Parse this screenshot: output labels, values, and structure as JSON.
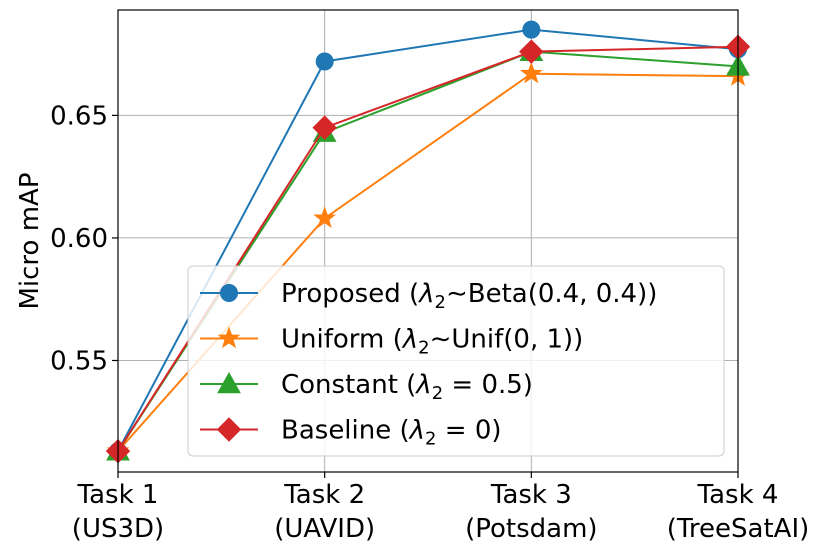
{
  "chart_data": {
    "type": "line",
    "title": "",
    "xlabel": "",
    "ylabel": "Micro mAP",
    "categories": [
      [
        "Task 1",
        "(US3D)"
      ],
      [
        "Task 2",
        "(UAVID)"
      ],
      [
        "Task 3",
        "(Potsdam)"
      ],
      [
        "Task 4",
        "(TreeSatAI)"
      ]
    ],
    "ylim": [
      0.5045,
      0.693
    ],
    "yticks": [
      0.55,
      0.6,
      0.65
    ],
    "ytick_labels": [
      "0.55",
      "0.60",
      "0.65"
    ],
    "grid": true,
    "legend_position": "lower-right",
    "series": [
      {
        "name": "Proposed",
        "legend_prefix": "Proposed (",
        "lambda": "λ",
        "lambda_sub": "2",
        "legend_suffix": "∼Beta(0.4, 0.4))",
        "color": "#1f77b4",
        "marker": "circle",
        "values": [
          0.513,
          0.672,
          0.685,
          0.677
        ]
      },
      {
        "name": "Uniform",
        "legend_prefix": "Uniform (",
        "lambda": "λ",
        "lambda_sub": "2",
        "legend_suffix": "∼Unif(0, 1))",
        "color": "#ff7f0e",
        "marker": "star",
        "values": [
          0.513,
          0.608,
          0.667,
          0.666
        ]
      },
      {
        "name": "Constant",
        "legend_prefix": "Constant (",
        "lambda": "λ",
        "lambda_sub": "2",
        "legend_suffix": " = 0.5)",
        "color": "#2ca02c",
        "marker": "triangle",
        "values": [
          0.513,
          0.643,
          0.676,
          0.67
        ]
      },
      {
        "name": "Baseline",
        "legend_prefix": "Baseline (",
        "lambda": "λ",
        "lambda_sub": "2",
        "legend_suffix": " = 0)",
        "color": "#d62728",
        "marker": "diamond",
        "values": [
          0.513,
          0.645,
          0.676,
          0.678
        ]
      }
    ]
  }
}
